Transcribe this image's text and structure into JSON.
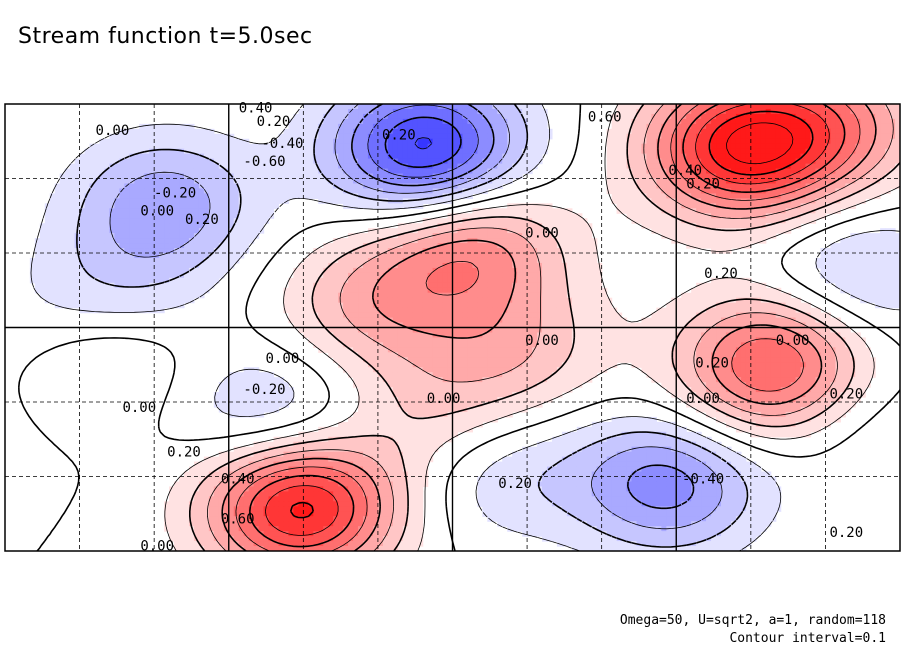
{
  "title": "Stream function t=5.0sec",
  "footnote": {
    "line1": "Omega=50, U=sqrt2, a=1, random=118",
    "line2": "Contour interval=0.1"
  },
  "colors": {
    "positive": "#ff0000",
    "negative": "#0000ff",
    "frame": "#000000"
  },
  "chart_data": {
    "type": "heatmap",
    "title": "Stream function t=5.0sec",
    "contour_interval": 0.1,
    "grid": "dashed minor, solid major",
    "centers": [
      {
        "x": 0.47,
        "y": 0.9,
        "value": -0.75
      },
      {
        "x": 0.18,
        "y": 0.78,
        "value": -0.35
      },
      {
        "x": 0.95,
        "y": 0.62,
        "value": -0.25
      },
      {
        "x": 0.74,
        "y": 0.15,
        "value": -0.45
      },
      {
        "x": 0.55,
        "y": 0.18,
        "value": -0.2
      },
      {
        "x": 0.3,
        "y": 0.3,
        "value": -0.25
      },
      {
        "x": 0.94,
        "y": 0.3,
        "value": -0.15
      },
      {
        "x": 0.13,
        "y": 0.6,
        "value": -0.15
      },
      {
        "x": 0.06,
        "y": 0.5,
        "value": -0.1
      },
      {
        "x": 0.82,
        "y": 0.9,
        "value": 0.8
      },
      {
        "x": 0.41,
        "y": 0.55,
        "value": 0.3
      },
      {
        "x": 0.52,
        "y": 0.68,
        "value": 0.45
      },
      {
        "x": 0.86,
        "y": 0.44,
        "value": 0.4
      },
      {
        "x": 0.86,
        "y": 0.37,
        "value": 0.3
      },
      {
        "x": 0.1,
        "y": 0.43,
        "value": 0.2
      },
      {
        "x": 0.48,
        "y": 0.3,
        "value": 0.2
      },
      {
        "x": 0.57,
        "y": 0.45,
        "value": 0.25
      },
      {
        "x": 0.92,
        "y": 0.95,
        "value": 0.4
      },
      {
        "x": 0.33,
        "y": 0.1,
        "value": 0.85
      },
      {
        "x": 0.05,
        "y": 0.35,
        "value": -0.05
      }
    ],
    "contour_labels": [
      {
        "x": 0.28,
        "y": 0.99,
        "text": "0.40"
      },
      {
        "x": 0.3,
        "y": 0.96,
        "text": "0.20"
      },
      {
        "x": 0.12,
        "y": 0.94,
        "text": "0.00"
      },
      {
        "x": 0.31,
        "y": 0.91,
        "text": "-0.40"
      },
      {
        "x": 0.44,
        "y": 0.93,
        "text": "0.20"
      },
      {
        "x": 0.29,
        "y": 0.87,
        "text": "-0.60"
      },
      {
        "x": 0.19,
        "y": 0.8,
        "text": "-0.20"
      },
      {
        "x": 0.17,
        "y": 0.76,
        "text": "0.00"
      },
      {
        "x": 0.22,
        "y": 0.74,
        "text": "0.20"
      },
      {
        "x": 0.67,
        "y": 0.97,
        "text": "0.60"
      },
      {
        "x": 0.76,
        "y": 0.85,
        "text": "0.40"
      },
      {
        "x": 0.78,
        "y": 0.82,
        "text": "0.20"
      },
      {
        "x": 0.6,
        "y": 0.71,
        "text": "0.00"
      },
      {
        "x": 0.8,
        "y": 0.62,
        "text": "0.20"
      },
      {
        "x": 0.6,
        "y": 0.47,
        "text": "0.00"
      },
      {
        "x": 0.88,
        "y": 0.47,
        "text": "0.00"
      },
      {
        "x": 0.79,
        "y": 0.42,
        "text": "0.20"
      },
      {
        "x": 0.31,
        "y": 0.43,
        "text": "0.00"
      },
      {
        "x": 0.29,
        "y": 0.36,
        "text": "-0.20"
      },
      {
        "x": 0.49,
        "y": 0.34,
        "text": "0.00"
      },
      {
        "x": 0.78,
        "y": 0.34,
        "text": "0.00"
      },
      {
        "x": 0.94,
        "y": 0.35,
        "text": "0.20"
      },
      {
        "x": 0.15,
        "y": 0.32,
        "text": "0.00"
      },
      {
        "x": 0.2,
        "y": 0.22,
        "text": "0.20"
      },
      {
        "x": 0.26,
        "y": 0.16,
        "text": "0.40"
      },
      {
        "x": 0.57,
        "y": 0.15,
        "text": "0.20"
      },
      {
        "x": 0.78,
        "y": 0.16,
        "text": "-0.40"
      },
      {
        "x": 0.26,
        "y": 0.07,
        "text": "0.60"
      },
      {
        "x": 0.17,
        "y": 0.01,
        "text": "0.00"
      },
      {
        "x": 0.94,
        "y": 0.04,
        "text": "0.20"
      }
    ]
  }
}
